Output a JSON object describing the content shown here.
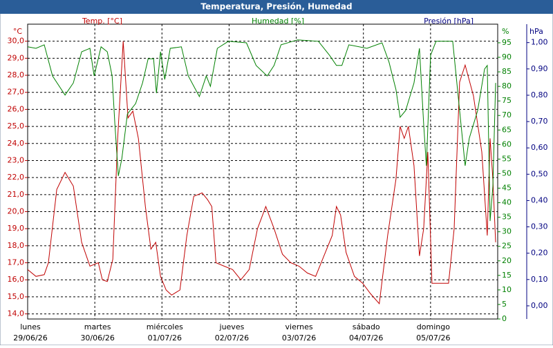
{
  "chart_data": {
    "type": "line",
    "title": "Temperatura, Presión, Humedad",
    "y_unit": "°C",
    "y2_unit": "%",
    "y3_unit": "hPa",
    "y3_label": "Presión [hPa]",
    "grid": true,
    "xlim": [
      0,
      7
    ],
    "xticks": [
      {
        "value": 0,
        "label": "lunes"
      },
      {
        "value": 1,
        "label": "martes"
      },
      {
        "value": 2,
        "label": "miércoles"
      },
      {
        "value": 3,
        "label": "jueves"
      },
      {
        "value": 4,
        "label": "viernes"
      },
      {
        "value": 5,
        "label": "sábado"
      },
      {
        "value": 6,
        "label": "domingo"
      }
    ],
    "xtick_dates": [
      "29/06/26",
      "30/06/26",
      "01/07/26",
      "02/07/26",
      "03/07/26",
      "04/07/26",
      "05/07/26"
    ],
    "ylim": [
      13.7,
      31.0
    ],
    "yticks": [
      {
        "value": 14,
        "label": "14,0"
      },
      {
        "value": 15,
        "label": "15,0"
      },
      {
        "value": 16,
        "label": "16,0"
      },
      {
        "value": 17,
        "label": "17,0"
      },
      {
        "value": 18,
        "label": "18,0"
      },
      {
        "value": 19,
        "label": "19,0"
      },
      {
        "value": 20,
        "label": "20,0"
      },
      {
        "value": 21,
        "label": "21,0"
      },
      {
        "value": 22,
        "label": "22,0"
      },
      {
        "value": 23,
        "label": "23,0"
      },
      {
        "value": 24,
        "label": "24,0"
      },
      {
        "value": 25,
        "label": "25,0"
      },
      {
        "value": 26,
        "label": "26,0"
      },
      {
        "value": 27,
        "label": "27,0"
      },
      {
        "value": 28,
        "label": "28,0"
      },
      {
        "value": 29,
        "label": "29,0"
      },
      {
        "value": 30,
        "label": "30,0"
      }
    ],
    "y2lim": [
      0,
      101.4
    ],
    "y2ticks": [
      0,
      5,
      10,
      15,
      20,
      25,
      30,
      35,
      40,
      45,
      50,
      55,
      60,
      65,
      70,
      75,
      80,
      85,
      90,
      95
    ],
    "y3lim": [
      -0.05,
      1.07
    ],
    "y3ticks": [
      {
        "value": 0,
        "label": "0,00"
      },
      {
        "value": 0.1,
        "label": "0,10"
      },
      {
        "value": 0.2,
        "label": "0,20"
      },
      {
        "value": 0.3,
        "label": "0,30"
      },
      {
        "value": 0.4,
        "label": "0,40"
      },
      {
        "value": 0.5,
        "label": "0,50"
      },
      {
        "value": 0.6,
        "label": "0,60"
      },
      {
        "value": 0.7,
        "label": "0,70"
      },
      {
        "value": 0.8,
        "label": "0,80"
      },
      {
        "value": 0.9,
        "label": "0,90"
      },
      {
        "value": 1,
        "label": "1,00"
      }
    ],
    "y_color": "#c00000",
    "y2_color": "#008000",
    "y3_color": "#000080",
    "series": [
      {
        "name": "Temp. [°C]",
        "color": "#c00000",
        "x": [
          0,
          0.124,
          0.247,
          0.309,
          0.433,
          0.557,
          0.68,
          0.804,
          0.928,
          1.052,
          1.113,
          1.186,
          1.268,
          1.34,
          1.423,
          1.495,
          1.567,
          1.649,
          1.753,
          1.835,
          1.907,
          1.979,
          2.062,
          2.144,
          2.268,
          2.371,
          2.474,
          2.598,
          2.68,
          2.742,
          2.804,
          2.928,
          3.052,
          3.175,
          3.299,
          3.423,
          3.546,
          3.67,
          3.794,
          3.918,
          4.041,
          4.165,
          4.289,
          4.412,
          4.536,
          4.598,
          4.66,
          4.742,
          4.866,
          4.99,
          5.103,
          5.237,
          5.361,
          5.485,
          5.546,
          5.608,
          5.67,
          5.753,
          5.835,
          5.897,
          5.959,
          6.021,
          6.144,
          6.268,
          6.351,
          6.433,
          6.515,
          6.639,
          6.763,
          6.845,
          6.887,
          6.928,
          6.969
        ],
        "values": [
          16.6,
          16.2,
          16.3,
          17.0,
          21.3,
          22.3,
          21.5,
          18.2,
          16.8,
          17.0,
          16.0,
          15.9,
          17.2,
          24.3,
          30.0,
          25.5,
          25.9,
          24.3,
          20.3,
          17.8,
          18.2,
          16.2,
          15.4,
          15.1,
          15.4,
          18.6,
          20.9,
          21.1,
          20.7,
          20.3,
          17.0,
          16.8,
          16.6,
          16.0,
          16.6,
          19.0,
          20.3,
          19.0,
          17.5,
          17.0,
          16.8,
          16.4,
          16.2,
          17.4,
          18.6,
          20.3,
          19.8,
          17.6,
          16.2,
          15.8,
          15.2,
          14.6,
          18.6,
          21.9,
          25.0,
          24.3,
          25.0,
          22.7,
          17.4,
          19.0,
          23.5,
          15.8,
          15.8,
          15.8,
          19.0,
          27.6,
          28.6,
          26.8,
          23.5,
          18.6,
          24.3,
          21.9,
          18.2
        ]
      },
      {
        "name": "Humedad [%]",
        "color": "#008000",
        "axis": "y2",
        "x": [
          0,
          0.124,
          0.247,
          0.371,
          0.557,
          0.68,
          0.804,
          0.928,
          0.99,
          1.093,
          1.186,
          1.258,
          1.299,
          1.351,
          1.402,
          1.485,
          1.608,
          1.711,
          1.794,
          1.876,
          1.918,
          1.979,
          2.041,
          2.124,
          2.289,
          2.392,
          2.557,
          2.66,
          2.722,
          2.825,
          2.99,
          3.258,
          3.402,
          3.567,
          3.67,
          3.773,
          4.021,
          4.33,
          4.495,
          4.598,
          4.68,
          4.784,
          5.052,
          5.278,
          5.381,
          5.485,
          5.546,
          5.629,
          5.753,
          5.835,
          5.897,
          5.938,
          6.0,
          6.082,
          6.33,
          6.433,
          6.515,
          6.577,
          6.701,
          6.804,
          6.845,
          6.887,
          6.928,
          6.969
        ],
        "values": [
          93.6,
          93.1,
          94.3,
          83.6,
          77.0,
          81.2,
          91.9,
          93.1,
          83.6,
          93.6,
          91.9,
          83.6,
          67.0,
          49.2,
          55.1,
          70.5,
          74.1,
          81.2,
          89.5,
          89.5,
          77.7,
          91.9,
          82.4,
          93.1,
          93.6,
          83.6,
          76.5,
          83.6,
          80.0,
          93.1,
          95.5,
          95.0,
          87.2,
          83.6,
          87.2,
          94.3,
          96.0,
          95.5,
          90.7,
          87.2,
          87.2,
          94.3,
          93.1,
          95.0,
          88.4,
          78.9,
          69.4,
          71.7,
          81.2,
          93.1,
          67.0,
          52.7,
          90.7,
          95.5,
          95.5,
          71.7,
          52.7,
          62.2,
          71.7,
          86.0,
          87.2,
          33.7,
          45.6,
          81.2
        ]
      }
    ]
  }
}
